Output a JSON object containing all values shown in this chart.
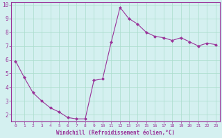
{
  "x": [
    0,
    1,
    2,
    3,
    4,
    5,
    6,
    7,
    8,
    9,
    10,
    11,
    12,
    13,
    14,
    15,
    16,
    17,
    18,
    19,
    20,
    21,
    22,
    23
  ],
  "y": [
    5.9,
    4.7,
    3.6,
    3.0,
    2.5,
    2.2,
    1.8,
    1.7,
    1.7,
    4.5,
    4.6,
    7.3,
    9.8,
    9.0,
    8.6,
    8.0,
    7.7,
    7.6,
    7.4,
    7.6,
    7.3,
    7.0,
    7.2,
    7.1
  ],
  "line_color": "#993399",
  "marker": "D",
  "marker_size": 2,
  "xlabel": "Windchill (Refroidissement éolien,°C)",
  "xlabel_color": "#993399",
  "bg_color": "#d4f0f0",
  "grid_color": "#aaddcc",
  "axis_color": "#993399",
  "tick_color": "#993399",
  "ylim": [
    1.5,
    10.2
  ],
  "xlim": [
    -0.5,
    23.5
  ],
  "yticks": [
    2,
    3,
    4,
    5,
    6,
    7,
    8,
    9,
    10
  ],
  "xticks": [
    0,
    1,
    2,
    3,
    4,
    5,
    6,
    7,
    8,
    9,
    10,
    11,
    12,
    13,
    14,
    15,
    16,
    17,
    18,
    19,
    20,
    21,
    22,
    23
  ]
}
